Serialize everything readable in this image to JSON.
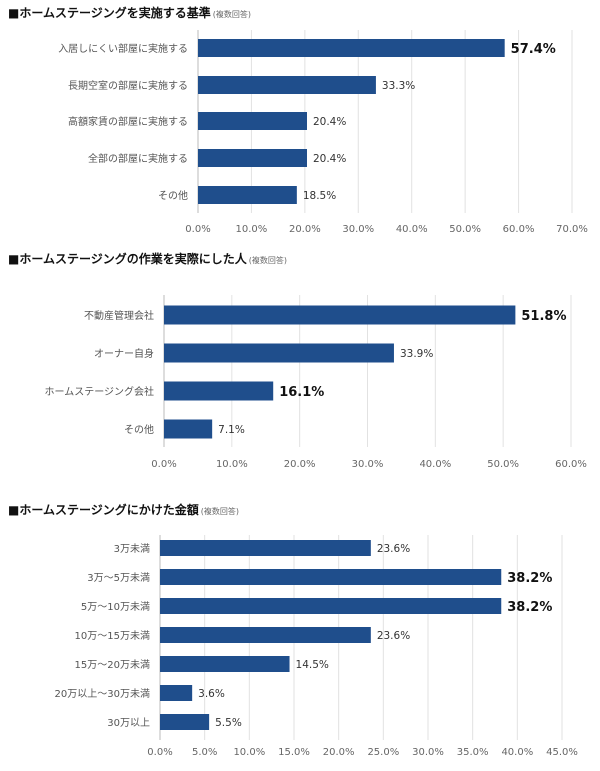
{
  "chart_data": [
    {
      "type": "bar",
      "orientation": "horizontal",
      "title": "■ホームステージングを実施する基準",
      "subtitle": "(複数回答)",
      "categories": [
        "入居しにくい部屋に実施する",
        "長期空室の部屋に実施する",
        "高額家賃の部屋に実施する",
        "全部の部屋に実施する",
        "その他"
      ],
      "values": [
        57.4,
        33.3,
        20.4,
        20.4,
        18.5
      ],
      "value_labels": [
        "57.4%",
        "33.3%",
        "20.4%",
        "20.4%",
        "18.5%"
      ],
      "emphasized": [
        true,
        false,
        false,
        false,
        false
      ],
      "xlim": [
        0,
        70
      ],
      "ticks": [
        "0.0%",
        "10.0%",
        "20.0%",
        "30.0%",
        "40.0%",
        "50.0%",
        "60.0%",
        "70.0%"
      ],
      "grid": true,
      "color": "#1f4e8c"
    },
    {
      "type": "bar",
      "orientation": "horizontal",
      "title": "■ホームステージングの作業を実際にした人",
      "subtitle": "(複数回答)",
      "categories": [
        "不動産管理会社",
        "オーナー自身",
        "ホームステージング会社",
        "その他"
      ],
      "values": [
        51.8,
        33.9,
        16.1,
        7.1
      ],
      "value_labels": [
        "51.8%",
        "33.9%",
        "16.1%",
        "7.1%"
      ],
      "emphasized": [
        true,
        false,
        true,
        false
      ],
      "xlim": [
        0,
        60
      ],
      "ticks": [
        "0.0%",
        "10.0%",
        "20.0%",
        "30.0%",
        "40.0%",
        "50.0%",
        "60.0%"
      ],
      "grid": true,
      "color": "#1f4e8c"
    },
    {
      "type": "bar",
      "orientation": "horizontal",
      "title": "■ホームステージングにかけた金額",
      "subtitle": "(複数回答)",
      "categories": [
        "3万未満",
        "3万～5万未満",
        "5万～10万未満",
        "10万～15万未満",
        "15万～20万未満",
        "20万以上～30万未満",
        "30万以上"
      ],
      "values": [
        23.6,
        38.2,
        38.2,
        23.6,
        14.5,
        3.6,
        5.5
      ],
      "value_labels": [
        "23.6%",
        "38.2%",
        "38.2%",
        "23.6%",
        "14.5%",
        "3.6%",
        "5.5%"
      ],
      "emphasized": [
        false,
        true,
        true,
        false,
        false,
        false,
        false
      ],
      "xlim": [
        0,
        45
      ],
      "ticks": [
        "0.0%",
        "5.0%",
        "10.0%",
        "15.0%",
        "20.0%",
        "25.0%",
        "30.0%",
        "35.0%",
        "40.0%",
        "45.0%"
      ],
      "grid": true,
      "color": "#1f4e8c"
    }
  ]
}
